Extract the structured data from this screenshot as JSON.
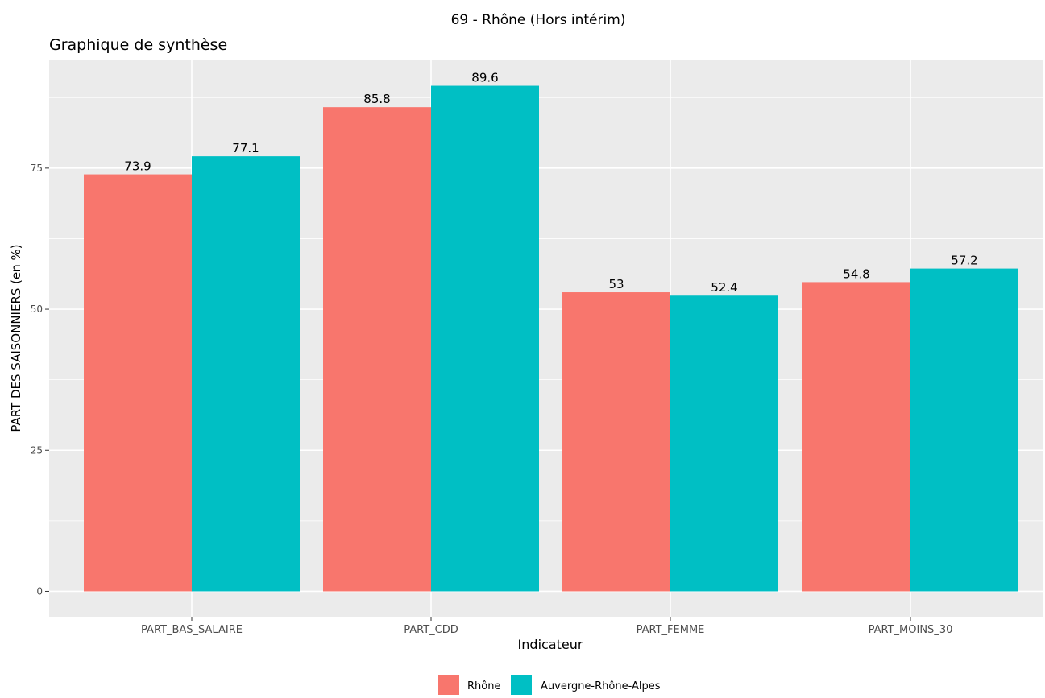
{
  "chart_data": {
    "type": "bar",
    "title": "69 - Rhône (Hors intérim)",
    "subtitle": "Graphique de synthèse",
    "xlabel": "Indicateur",
    "ylabel": "PART DES SAISONNIERS (en %)",
    "categories": [
      "PART_BAS_SALAIRE",
      "PART_CDD",
      "PART_FEMME",
      "PART_MOINS_30"
    ],
    "series": [
      {
        "name": "Rhône",
        "color": "#F8766D",
        "values": [
          73.9,
          85.8,
          53,
          54.8
        ],
        "labels": [
          "73.9",
          "85.8",
          "53",
          "54.8"
        ]
      },
      {
        "name": "Auvergne-Rhône-Alpes",
        "color": "#00BFC4",
        "values": [
          77.1,
          89.6,
          52.4,
          57.2
        ],
        "labels": [
          "77.1",
          "89.6",
          "52.4",
          "57.2"
        ]
      }
    ],
    "yticks": [
      0,
      25,
      50,
      75
    ],
    "ylim": [
      -4.5,
      94.1
    ],
    "grid": true,
    "legend_position": "bottom",
    "panel_background": "#EBEBEB"
  }
}
